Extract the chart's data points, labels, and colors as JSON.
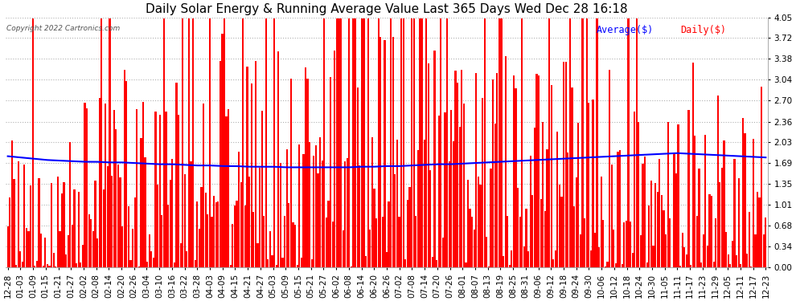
{
  "title": "Daily Solar Energy & Running Average Value Last 365 Days Wed Dec 28 16:18",
  "copyright": "Copyright 2022 Cartronics.com",
  "legend_avg": "Average($)",
  "legend_daily": "Daily($)",
  "bar_color": "#ff0000",
  "avg_line_color": "#0000ff",
  "background_color": "#ffffff",
  "grid_color": "#b0b0b0",
  "yticks": [
    0.0,
    0.34,
    0.68,
    1.01,
    1.35,
    1.69,
    2.03,
    2.36,
    2.7,
    3.04,
    3.38,
    3.72,
    4.05
  ],
  "ylim": [
    0.0,
    4.05
  ],
  "title_fontsize": 11,
  "tick_fontsize": 7.5,
  "xlabel_rotation": 90,
  "xtick_labels": [
    "12-28",
    "01-03",
    "01-09",
    "01-15",
    "01-21",
    "01-27",
    "02-02",
    "02-08",
    "02-14",
    "02-20",
    "02-26",
    "03-04",
    "03-10",
    "03-16",
    "03-22",
    "03-28",
    "04-03",
    "04-09",
    "04-15",
    "04-21",
    "04-27",
    "05-03",
    "05-09",
    "05-15",
    "05-21",
    "05-27",
    "06-02",
    "06-08",
    "06-14",
    "06-20",
    "06-26",
    "07-02",
    "07-08",
    "07-14",
    "07-20",
    "07-26",
    "08-01",
    "08-07",
    "08-13",
    "08-19",
    "08-25",
    "08-31",
    "09-06",
    "09-12",
    "09-18",
    "09-24",
    "09-30",
    "10-06",
    "10-12",
    "10-18",
    "10-24",
    "10-30",
    "11-05",
    "11-11",
    "11-17",
    "11-23",
    "11-29",
    "12-05",
    "12-11",
    "12-17",
    "12-23"
  ],
  "avg_line_values": [
    1.8,
    1.78,
    1.76,
    1.74,
    1.73,
    1.72,
    1.71,
    1.71,
    1.7,
    1.7,
    1.69,
    1.68,
    1.67,
    1.67,
    1.66,
    1.65,
    1.65,
    1.64,
    1.64,
    1.63,
    1.63,
    1.63,
    1.62,
    1.62,
    1.62,
    1.62,
    1.62,
    1.62,
    1.63,
    1.63,
    1.64,
    1.64,
    1.65,
    1.66,
    1.67,
    1.67,
    1.68,
    1.69,
    1.7,
    1.71,
    1.72,
    1.73,
    1.74,
    1.75,
    1.76,
    1.77,
    1.78,
    1.79,
    1.8,
    1.81,
    1.82,
    1.83,
    1.84,
    1.85,
    1.84,
    1.83,
    1.82,
    1.81,
    1.8,
    1.79,
    1.78
  ]
}
